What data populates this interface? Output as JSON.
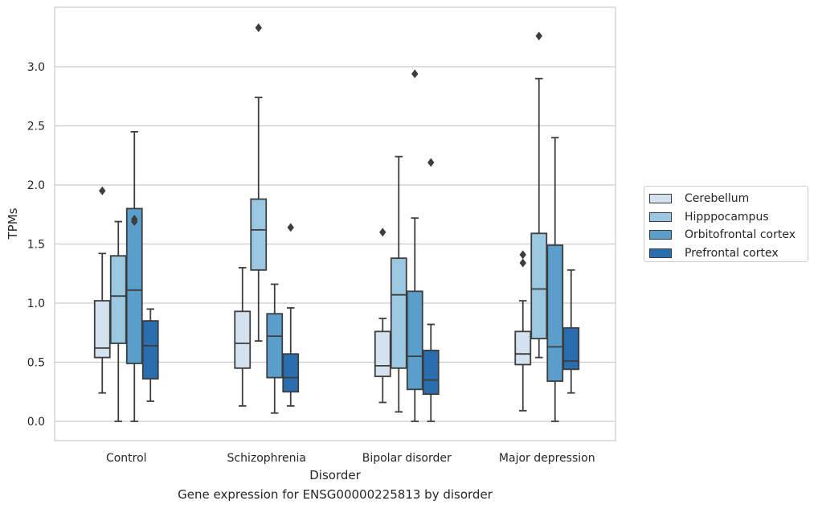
{
  "caption": "Gene expression for ENSG00000225813 by disorder",
  "chart_data": {
    "type": "box",
    "title": "",
    "xlabel": "Disorder",
    "ylabel": "TPMs",
    "ylim": [
      -0.16,
      3.5
    ],
    "yticks": [
      0.0,
      0.5,
      1.0,
      1.5,
      2.0,
      2.5,
      3.0
    ],
    "ytick_labels": [
      "0.0",
      "0.5",
      "1.0",
      "1.5",
      "2.0",
      "2.5",
      "3.0"
    ],
    "grid": true,
    "legend_position": "right",
    "categories": [
      "Control",
      "Schizophrenia",
      "Bipolar disorder",
      "Major depression"
    ],
    "series": [
      {
        "name": "Cerebellum",
        "color": "#d4e2f0",
        "boxes": [
          {
            "whislo": 0.24,
            "q1": 0.54,
            "med": 0.62,
            "q3": 1.02,
            "whishi": 1.42,
            "fliers": [
              1.95
            ]
          },
          {
            "whislo": 0.13,
            "q1": 0.45,
            "med": 0.66,
            "q3": 0.93,
            "whishi": 1.3,
            "fliers": []
          },
          {
            "whislo": 0.16,
            "q1": 0.38,
            "med": 0.47,
            "q3": 0.76,
            "whishi": 0.87,
            "fliers": [
              1.6
            ]
          },
          {
            "whislo": 0.09,
            "q1": 0.48,
            "med": 0.57,
            "q3": 0.76,
            "whishi": 1.02,
            "fliers": [
              1.34,
              1.41
            ]
          }
        ]
      },
      {
        "name": "Hipppocampus",
        "color": "#9ac8e0",
        "boxes": [
          {
            "whislo": 0.0,
            "q1": 0.66,
            "med": 1.06,
            "q3": 1.4,
            "whishi": 1.69,
            "fliers": []
          },
          {
            "whislo": 0.68,
            "q1": 1.28,
            "med": 1.62,
            "q3": 1.88,
            "whishi": 2.74,
            "fliers": [
              3.33
            ]
          },
          {
            "whislo": 0.08,
            "q1": 0.45,
            "med": 1.07,
            "q3": 1.38,
            "whishi": 2.24,
            "fliers": []
          },
          {
            "whislo": 0.54,
            "q1": 0.7,
            "med": 1.12,
            "q3": 1.59,
            "whishi": 2.9,
            "fliers": [
              3.26
            ]
          }
        ]
      },
      {
        "name": "Orbitofrontal cortex",
        "color": "#5a9ecc",
        "boxes": [
          {
            "whislo": 0.0,
            "q1": 0.49,
            "med": 1.11,
            "q3": 1.8,
            "whishi": 2.45,
            "fliers": [
              1.69,
              1.71
            ]
          },
          {
            "whislo": 0.07,
            "q1": 0.37,
            "med": 0.72,
            "q3": 0.91,
            "whishi": 1.16,
            "fliers": []
          },
          {
            "whislo": 0.0,
            "q1": 0.27,
            "med": 0.55,
            "q3": 1.1,
            "whishi": 1.72,
            "fliers": [
              2.94
            ]
          },
          {
            "whislo": 0.0,
            "q1": 0.34,
            "med": 0.63,
            "q3": 1.49,
            "whishi": 2.4,
            "fliers": []
          }
        ]
      },
      {
        "name": "Prefrontal cortex",
        "color": "#2a6eb0",
        "boxes": [
          {
            "whislo": 0.17,
            "q1": 0.36,
            "med": 0.64,
            "q3": 0.85,
            "whishi": 0.95,
            "fliers": []
          },
          {
            "whislo": 0.13,
            "q1": 0.25,
            "med": 0.37,
            "q3": 0.57,
            "whishi": 0.96,
            "fliers": [
              1.64
            ]
          },
          {
            "whislo": 0.0,
            "q1": 0.23,
            "med": 0.35,
            "q3": 0.6,
            "whishi": 0.82,
            "fliers": [
              2.19
            ]
          },
          {
            "whislo": 0.24,
            "q1": 0.44,
            "med": 0.51,
            "q3": 0.79,
            "whishi": 1.28,
            "fliers": []
          }
        ]
      }
    ]
  }
}
